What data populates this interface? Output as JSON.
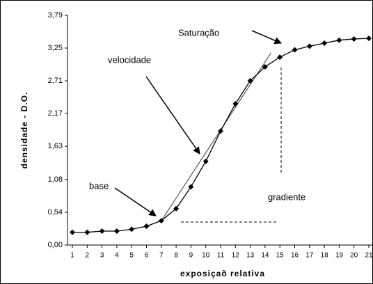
{
  "chart_data": {
    "type": "line",
    "x_label": "exposiçaõ relativa",
    "y_label": "densidade - D.O.",
    "x": [
      1,
      2,
      3,
      4,
      5,
      6,
      7,
      8,
      9,
      10,
      11,
      12,
      13,
      14,
      15,
      16,
      17,
      18,
      19,
      20,
      21
    ],
    "series": [
      {
        "color": "#000000",
        "values": [
          0.21,
          0.21,
          0.23,
          0.23,
          0.26,
          0.31,
          0.4,
          0.6,
          0.96,
          1.38,
          1.88,
          2.33,
          2.71,
          2.94,
          3.1,
          3.22,
          3.28,
          3.33,
          3.38,
          3.4,
          3.41
        ]
      }
    ],
    "tangent": {
      "x": [
        7,
        14.4
      ],
      "y": [
        0.4,
        3.17
      ]
    },
    "xlim": [
      1,
      21
    ],
    "xticks": [
      1,
      2,
      3,
      4,
      5,
      6,
      7,
      8,
      9,
      10,
      11,
      12,
      13,
      14,
      15,
      16,
      17,
      18,
      19,
      20,
      21
    ],
    "ylim": [
      0,
      3.79
    ],
    "yticks": [
      {
        "value": 0,
        "label": "0,00"
      },
      {
        "value": 0.54,
        "label": "0,54"
      },
      {
        "value": 1.08,
        "label": "1,08"
      },
      {
        "value": 1.63,
        "label": "1,63"
      },
      {
        "value": 2.17,
        "label": "2,17"
      },
      {
        "value": 2.71,
        "label": "2,71"
      },
      {
        "value": 3.25,
        "label": "3,25"
      },
      {
        "value": 3.79,
        "label": "3,79"
      }
    ],
    "annotations": [
      {
        "text": "Saturação"
      },
      {
        "text": "velocidade"
      },
      {
        "text": "base"
      },
      {
        "text": "gradiente"
      }
    ]
  }
}
